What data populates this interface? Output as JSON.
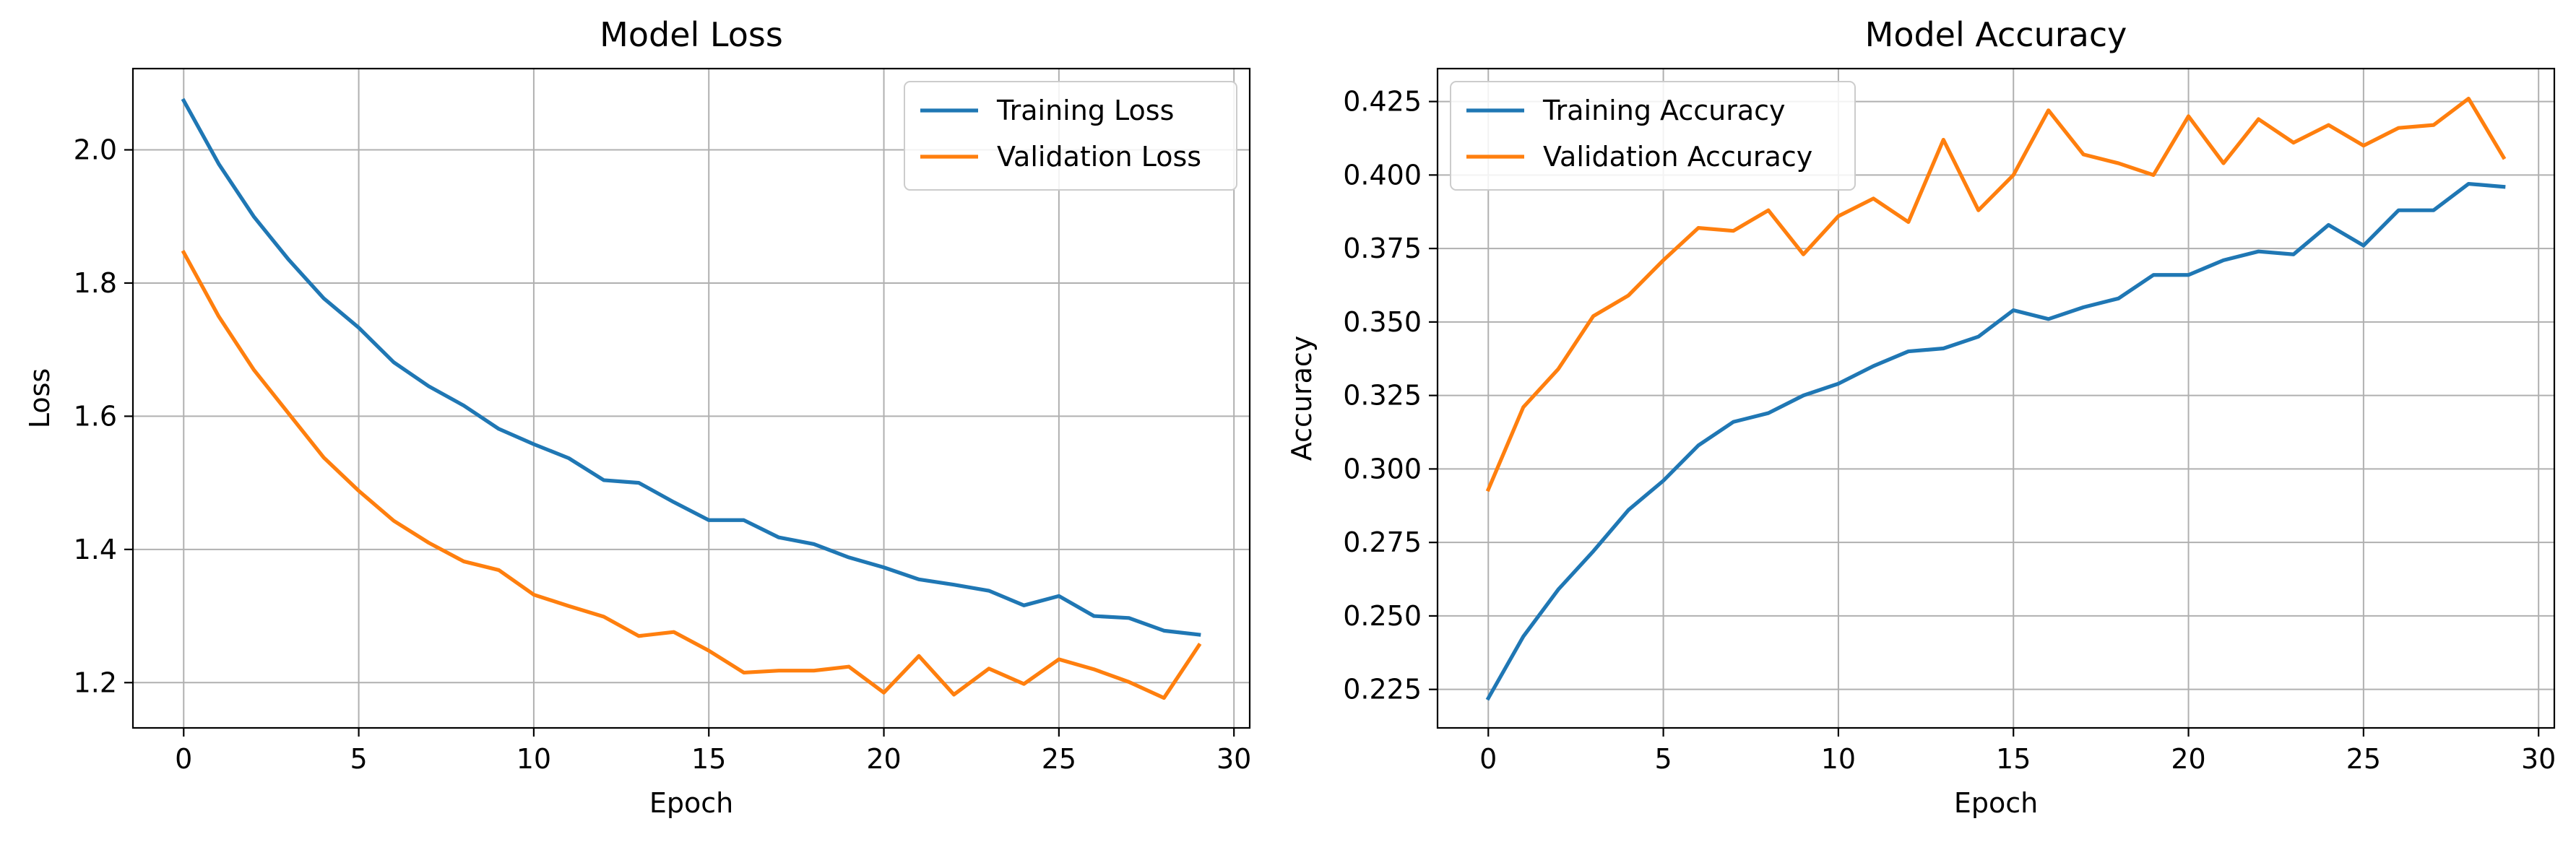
{
  "chart_data": [
    {
      "type": "line",
      "title": "Model Loss",
      "xlabel": "Epoch",
      "ylabel": "Loss",
      "xlim": [
        -1.45,
        30.45
      ],
      "ylim": [
        1.132,
        2.122
      ],
      "xticks": [
        0,
        5,
        10,
        15,
        20,
        25,
        30
      ],
      "yticks": [
        1.2,
        1.4,
        1.6,
        1.8,
        2.0
      ],
      "ytick_labels": [
        "1.2",
        "1.4",
        "1.6",
        "1.8",
        "2.0"
      ],
      "grid": true,
      "legend_position": "top-right",
      "x": [
        0,
        1,
        2,
        3,
        4,
        5,
        6,
        7,
        8,
        9,
        10,
        11,
        12,
        13,
        14,
        15,
        16,
        17,
        18,
        19,
        20,
        21,
        22,
        23,
        24,
        25,
        26,
        27,
        28,
        29
      ],
      "series": [
        {
          "name": "Training Loss",
          "color": "#1f77b4",
          "values": [
            2.074,
            1.979,
            1.9,
            1.835,
            1.777,
            1.733,
            1.681,
            1.645,
            1.616,
            1.581,
            1.558,
            1.537,
            1.504,
            1.5,
            1.471,
            1.444,
            1.444,
            1.418,
            1.408,
            1.388,
            1.373,
            1.355,
            1.347,
            1.338,
            1.316,
            1.33,
            1.3,
            1.297,
            1.278,
            1.272
          ]
        },
        {
          "name": "Validation Loss",
          "color": "#ff7f0e",
          "values": [
            1.846,
            1.75,
            1.67,
            1.604,
            1.538,
            1.488,
            1.443,
            1.41,
            1.382,
            1.369,
            1.332,
            1.315,
            1.299,
            1.27,
            1.276,
            1.248,
            1.215,
            1.218,
            1.218,
            1.224,
            1.185,
            1.24,
            1.182,
            1.221,
            1.198,
            1.235,
            1.22,
            1.201,
            1.177,
            1.256
          ]
        }
      ]
    },
    {
      "type": "line",
      "title": "Model Accuracy",
      "xlabel": "Epoch",
      "ylabel": "Accuracy",
      "xlim": [
        -1.45,
        30.45
      ],
      "ylim": [
        0.2119,
        0.4362
      ],
      "xticks": [
        0,
        5,
        10,
        15,
        20,
        25,
        30
      ],
      "yticks": [
        0.225,
        0.25,
        0.275,
        0.3,
        0.325,
        0.35,
        0.375,
        0.4,
        0.425
      ],
      "ytick_labels": [
        "0.225",
        "0.250",
        "0.275",
        "0.300",
        "0.325",
        "0.350",
        "0.375",
        "0.400",
        "0.425"
      ],
      "grid": true,
      "legend_position": "top-left",
      "x": [
        0,
        1,
        2,
        3,
        4,
        5,
        6,
        7,
        8,
        9,
        10,
        11,
        12,
        13,
        14,
        15,
        16,
        17,
        18,
        19,
        20,
        21,
        22,
        23,
        24,
        25,
        26,
        27,
        28,
        29
      ],
      "series": [
        {
          "name": "Training Accuracy",
          "color": "#1f77b4",
          "values": [
            0.222,
            0.243,
            0.259,
            0.272,
            0.286,
            0.296,
            0.308,
            0.316,
            0.319,
            0.325,
            0.329,
            0.335,
            0.34,
            0.341,
            0.345,
            0.354,
            0.351,
            0.355,
            0.358,
            0.366,
            0.366,
            0.371,
            0.374,
            0.373,
            0.383,
            0.376,
            0.388,
            0.388,
            0.397,
            0.396
          ]
        },
        {
          "name": "Validation Accuracy",
          "color": "#ff7f0e",
          "values": [
            0.293,
            0.321,
            0.334,
            0.352,
            0.359,
            0.371,
            0.382,
            0.381,
            0.388,
            0.373,
            0.386,
            0.392,
            0.384,
            0.412,
            0.388,
            0.4,
            0.422,
            0.407,
            0.404,
            0.4,
            0.42,
            0.404,
            0.419,
            0.411,
            0.417,
            0.41,
            0.416,
            0.417,
            0.426,
            0.406
          ]
        }
      ]
    }
  ]
}
